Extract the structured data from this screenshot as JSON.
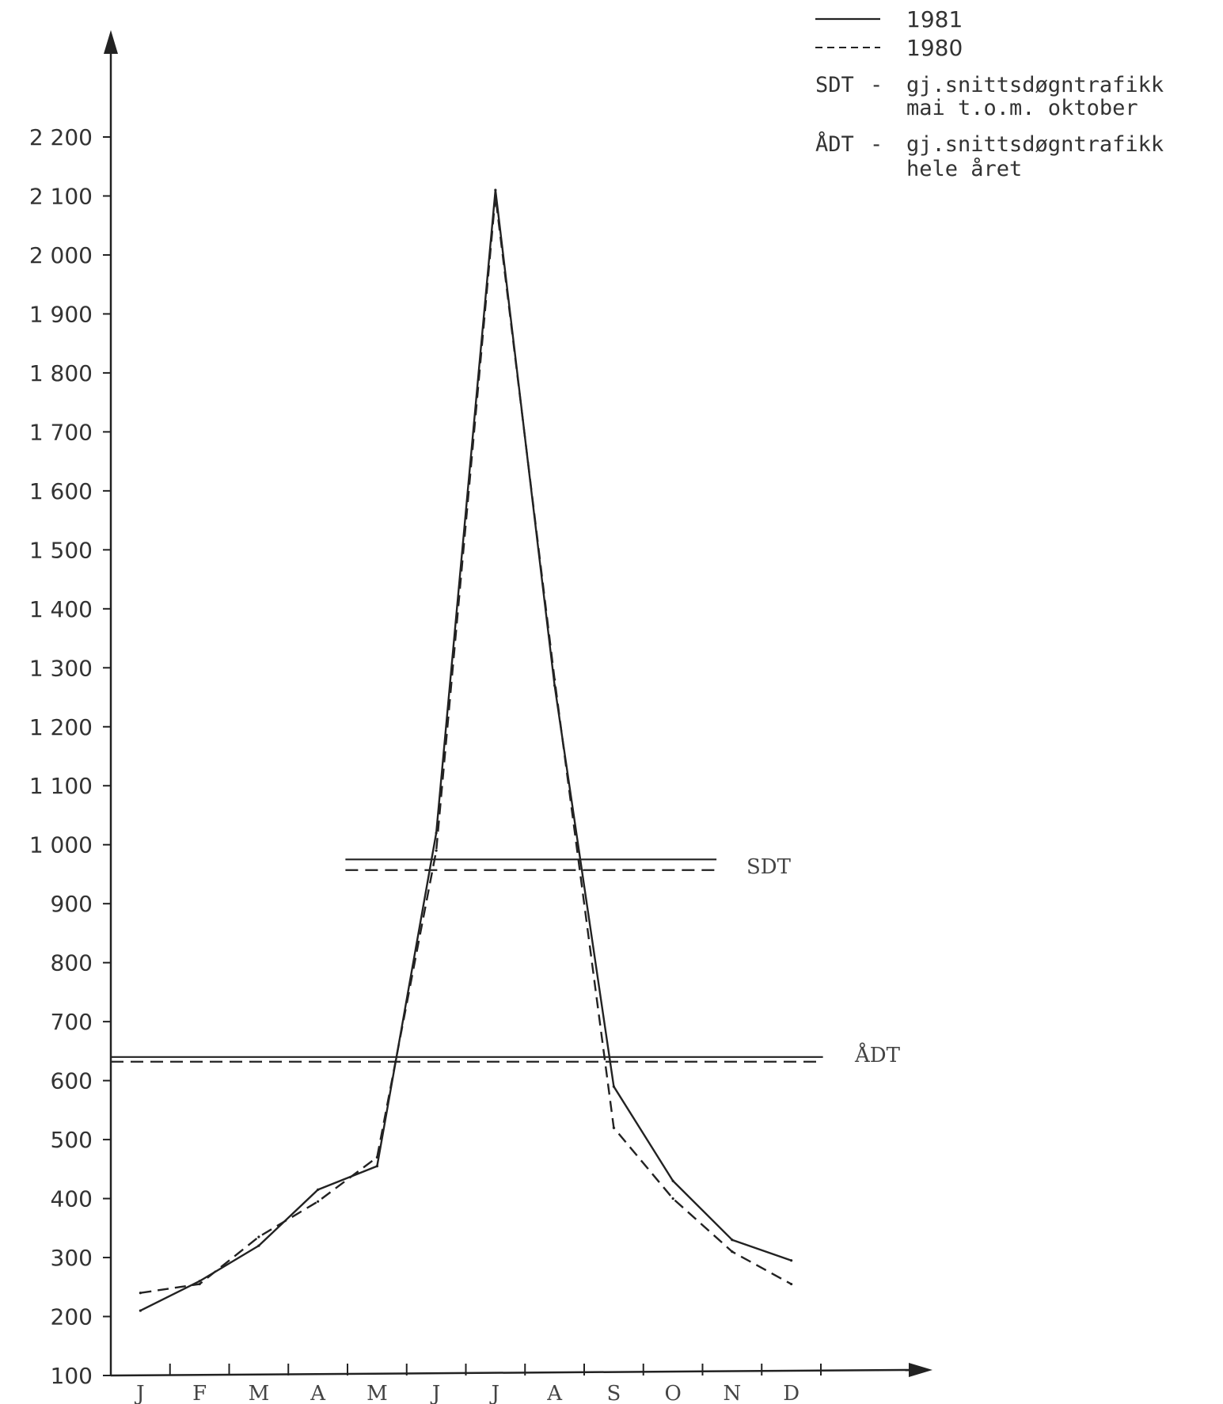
{
  "chart_data": {
    "type": "line",
    "title": "",
    "xlabel": "",
    "ylabel": "",
    "categories": [
      "J",
      "F",
      "M",
      "A",
      "M",
      "J",
      "J",
      "A",
      "S",
      "O",
      "N",
      "D"
    ],
    "yticks": [
      "100",
      "200",
      "300",
      "400",
      "500",
      "600",
      "700",
      "800",
      "900",
      "1 000",
      "1 100",
      "1 200",
      "1 300",
      "1 400",
      "1 500",
      "1 600",
      "1 700",
      "1 800",
      "1 900",
      "2 000",
      "2 100",
      "2 200"
    ],
    "ylim": [
      100,
      2200
    ],
    "grid": false,
    "series": [
      {
        "name": "1981",
        "style": "solid",
        "values": [
          210,
          260,
          320,
          415,
          455,
          1020,
          2110,
          1270,
          590,
          430,
          330,
          295
        ]
      },
      {
        "name": "1980",
        "style": "dashed",
        "values": [
          240,
          255,
          335,
          395,
          470,
          990,
          2100,
          1280,
          520,
          400,
          310,
          255
        ]
      }
    ],
    "reference_lines": [
      {
        "label": "SDT",
        "year": "1981",
        "style": "solid",
        "value": 975,
        "from": "M",
        "to": "O"
      },
      {
        "label": "SDT",
        "year": "1980",
        "style": "dashed",
        "value": 957,
        "from": "M",
        "to": "O"
      },
      {
        "label": "ÅDT",
        "year": "1981",
        "style": "solid",
        "value": 640,
        "from": "J",
        "to": "D"
      },
      {
        "label": "ÅDT",
        "year": "1980",
        "style": "dashed",
        "value": 632,
        "from": "J",
        "to": "D"
      }
    ],
    "legend": {
      "placement": "top-right",
      "series_entries": [
        "1981",
        "1980"
      ],
      "notes": [
        {
          "abbr": "SDT",
          "dash": "-",
          "line1": "gj.snittsdøgntrafikk",
          "line2": "mai t.o.m. oktober"
        },
        {
          "abbr": "ÅDT",
          "dash": "-",
          "line1": "gj.snittsdøgntrafikk",
          "line2": "hele året"
        }
      ]
    },
    "colors": {
      "ink": "#222222"
    }
  }
}
